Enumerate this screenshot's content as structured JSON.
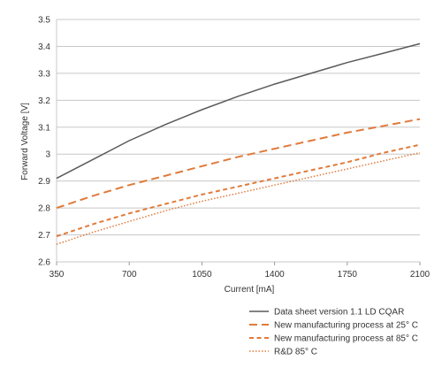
{
  "chart_data": {
    "type": "line",
    "xlabel": "Current [mA]",
    "ylabel": "Forward Voltage [V]",
    "xlim": [
      350,
      2100
    ],
    "ylim": [
      2.6,
      3.5
    ],
    "x_ticks": [
      "350",
      "700",
      "1050",
      "1400",
      "1750",
      "2100"
    ],
    "y_ticks": [
      "2.6",
      "2.7",
      "2.8",
      "2.9",
      "3",
      "3.1",
      "3.2",
      "3.3",
      "3.4",
      "3.5"
    ],
    "grid": "horizontal",
    "legend_position": "bottom-right",
    "series": [
      {
        "name": "Data sheet version 1.1 LD CQAR",
        "color": "#5a5a5a",
        "style": "solid",
        "x": [
          350,
          525,
          700,
          875,
          1050,
          1225,
          1400,
          1575,
          1750,
          1925,
          2100
        ],
        "y": [
          2.91,
          2.98,
          3.05,
          3.11,
          3.165,
          3.215,
          3.26,
          3.3,
          3.34,
          3.375,
          3.41
        ]
      },
      {
        "name": "New manufacturing process at 25° C",
        "color": "#e07b3c",
        "style": "long-dash",
        "x": [
          350,
          525,
          700,
          875,
          1050,
          1225,
          1400,
          1575,
          1750,
          1925,
          2100
        ],
        "y": [
          2.8,
          2.845,
          2.885,
          2.92,
          2.955,
          2.99,
          3.02,
          3.05,
          3.08,
          3.105,
          3.13
        ]
      },
      {
        "name": "New manufacturing process at 85° C",
        "color": "#e07b3c",
        "style": "short-dash",
        "x": [
          350,
          525,
          700,
          875,
          1050,
          1225,
          1400,
          1575,
          1750,
          1925,
          2100
        ],
        "y": [
          2.695,
          2.74,
          2.78,
          2.815,
          2.85,
          2.88,
          2.91,
          2.94,
          2.97,
          3.005,
          3.035
        ]
      },
      {
        "name": "R&D 85° C",
        "color": "#e07b3c",
        "style": "dotted",
        "x": [
          350,
          525,
          700,
          875,
          1050,
          1225,
          1400,
          1575,
          1750,
          1925,
          2100
        ],
        "y": [
          2.665,
          2.71,
          2.75,
          2.79,
          2.825,
          2.855,
          2.885,
          2.915,
          2.945,
          2.975,
          3.005
        ]
      }
    ]
  }
}
